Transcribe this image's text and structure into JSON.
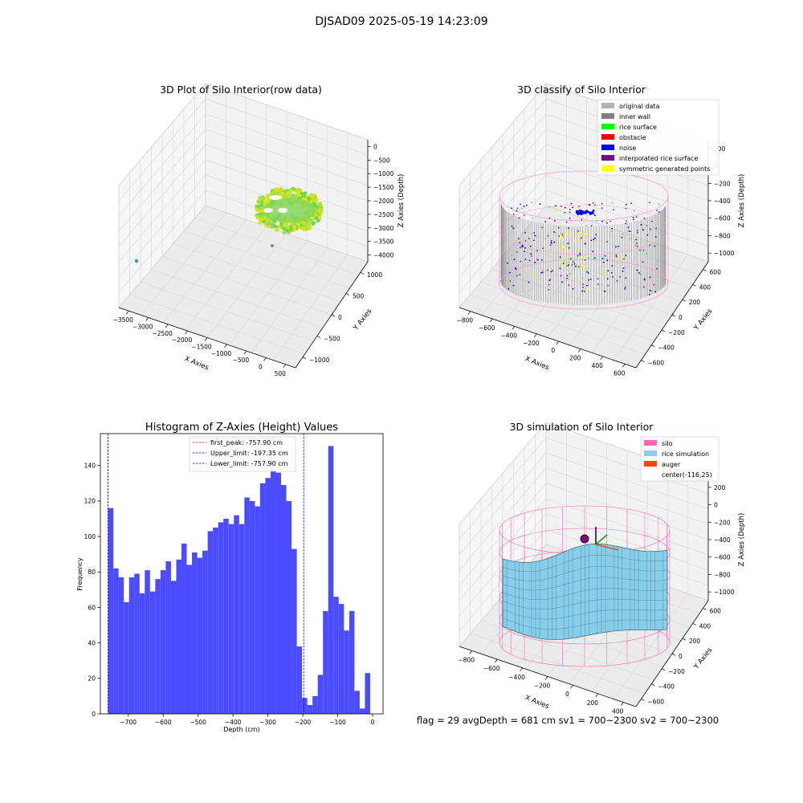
{
  "figure": {
    "suptitle": "DJSAD09 2025-05-19 14:23:09",
    "footer": "flag = 29   avgDepth = 681 cm   sv1 = 700~2300   sv2 = 700~2300"
  },
  "colors": {
    "histogram_bar": "#4b4bff",
    "first_peak_line": "#ff0000",
    "limit_line": "#0000cc",
    "silo": "#ff69b4",
    "rice_simulation": "#87ceeb",
    "auger": "#ff4500",
    "original_data": "#b3b3b3",
    "inner_wall": "#808080",
    "rice_surface": "#00ff00",
    "obstacle": "#ff0000",
    "noise": "#0000ff",
    "interpolated_rice_surface": "#800080",
    "symmetric_generated_points": "#ffff00"
  },
  "chart_data": [
    {
      "type": "scatter",
      "projection": "3d",
      "title": "3D Plot of Silo Interior(row data)",
      "xlabel": "X Axies",
      "ylabel": "Y Axies",
      "zlabel": "Z Axies (Depth)",
      "x_ticks": [
        "−3500",
        "−3000",
        "−2500",
        "−2000",
        "−1500",
        "−1000",
        "−500",
        "0",
        "500"
      ],
      "y_ticks": [
        "−1000",
        "−500",
        "0",
        "500",
        "1000"
      ],
      "z_ticks": [
        "0",
        "−500",
        "−1000",
        "−1500",
        "−2000",
        "−2500",
        "−3000",
        "−3500",
        "−4000"
      ],
      "xlim": [
        -3700,
        700
      ],
      "ylim": [
        -1200,
        1300
      ],
      "zlim": [
        -4200,
        200
      ],
      "colormap": "viridis"
    },
    {
      "type": "scatter",
      "projection": "3d",
      "title": "3D classify of Silo Interior",
      "xlabel": "X Axies",
      "ylabel": "Y Axies",
      "zlabel": "Z Axies (Depth)",
      "x_ticks": [
        "−800",
        "−600",
        "−400",
        "−200",
        "0",
        "200",
        "400",
        "600"
      ],
      "y_ticks": [
        "−600",
        "−400",
        "−200",
        "0",
        "200",
        "400",
        "600"
      ],
      "z_ticks": [
        "200",
        "0",
        "−200",
        "−400",
        "−600",
        "−800",
        "−1000"
      ],
      "xlim": [
        -850,
        650
      ],
      "ylim": [
        -650,
        650
      ],
      "zlim": [
        -1100,
        250
      ],
      "legend": {
        "placement": "top-right",
        "entries": [
          {
            "label": "original data",
            "color": "#b3b3b3"
          },
          {
            "label": "inner wall",
            "color": "#808080"
          },
          {
            "label": "rice surface",
            "color": "#00ff00"
          },
          {
            "label": "obstacle",
            "color": "#ff0000"
          },
          {
            "label": "noise",
            "color": "#0000ff"
          },
          {
            "label": "interpolated rice surface",
            "color": "#800080"
          },
          {
            "label": "symmetric generated points",
            "color": "#ffff00"
          }
        ]
      }
    },
    {
      "type": "bar",
      "title": "Histogram of Z-Axies (Height) Values",
      "xlabel": "Depth (cm)",
      "ylabel": "Frequency",
      "xlim": [
        -780,
        30
      ],
      "ylim": [
        0,
        158
      ],
      "x_ticks": [
        -700,
        -600,
        -500,
        -400,
        -300,
        -200,
        -100,
        0
      ],
      "x_tick_labels": [
        "−700",
        "−600",
        "−500",
        "−400",
        "−300",
        "−200",
        "−100",
        "0"
      ],
      "y_ticks": [
        0,
        20,
        40,
        60,
        80,
        100,
        120,
        140
      ],
      "bin_start": -757.9,
      "bin_width": 15.02,
      "values": [
        116,
        82,
        77,
        63,
        77,
        79,
        68,
        81,
        69,
        76,
        81,
        86,
        75,
        87,
        96,
        84,
        91,
        88,
        92,
        103,
        105,
        108,
        110,
        107,
        112,
        107,
        122,
        120,
        117,
        130,
        133,
        138,
        136,
        129,
        120,
        93,
        38,
        9,
        5,
        10,
        22,
        58,
        151,
        66,
        62,
        47,
        58,
        13,
        3,
        23
      ],
      "vlines": [
        {
          "x": -757.9,
          "label": "first_peak: -757.90 cm",
          "style": "dashed",
          "color": "#ff0000"
        },
        {
          "x": -197.35,
          "label": "Upper_limit: -197.35 cm",
          "style": "dashed",
          "color": "#0000cc"
        },
        {
          "x": -757.9,
          "label": "Lower_limit: -757.90 cm",
          "style": "dashed",
          "color": "#0000cc"
        }
      ],
      "legend": {
        "placement": "top-center"
      }
    },
    {
      "type": "surface",
      "projection": "3d",
      "title": "3D simulation of Silo Interior",
      "xlabel": "X Axies",
      "ylabel": "Y Axies",
      "zlabel": "Z Axies (Depth)",
      "x_ticks": [
        "−800",
        "−600",
        "−400",
        "−200",
        "0",
        "200",
        "400"
      ],
      "y_ticks": [
        "−600",
        "−400",
        "−200",
        "0",
        "200",
        "400",
        "600"
      ],
      "z_ticks": [
        "200",
        "0",
        "−200",
        "−400",
        "−600",
        "−800",
        "−1000"
      ],
      "xlim": [
        -850,
        500
      ],
      "ylim": [
        -650,
        650
      ],
      "zlim": [
        -1100,
        250
      ],
      "legend": {
        "placement": "top-right",
        "entries": [
          {
            "label": "silo",
            "color": "#ff69b4"
          },
          {
            "label": "rice simulation",
            "color": "#87ceeb"
          },
          {
            "label": "auger",
            "color": "#ff4500"
          },
          {
            "label": "center(-116,25)",
            "color": ""
          }
        ]
      }
    }
  ]
}
